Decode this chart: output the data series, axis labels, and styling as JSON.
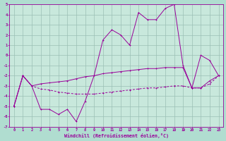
{
  "xlabel": "Windchill (Refroidissement éolien,°C)",
  "bg_color": "#b0ddd0",
  "plot_bg_color": "#c8e8dc",
  "line_color": "#990099",
  "grid_color": "#9bbfb5",
  "hours": [
    0,
    1,
    2,
    3,
    4,
    5,
    6,
    7,
    8,
    9,
    10,
    11,
    12,
    13,
    14,
    15,
    16,
    17,
    18,
    19,
    20,
    21,
    22,
    23
  ],
  "line1": [
    -5.0,
    -2.0,
    -3.0,
    -5.3,
    -5.3,
    -5.8,
    -5.3,
    -6.5,
    -4.5,
    -2.0,
    1.5,
    2.5,
    2.0,
    1.0,
    4.2,
    3.5,
    3.5,
    4.6,
    5.0,
    -1.0,
    -3.2,
    0.0,
    -0.5,
    -2.0
  ],
  "line2": [
    -5.0,
    -2.0,
    -3.0,
    -2.8,
    -2.7,
    -2.6,
    -2.5,
    -2.3,
    -2.1,
    -2.0,
    -1.8,
    -1.7,
    -1.6,
    -1.5,
    -1.4,
    -1.3,
    -1.3,
    -1.2,
    -1.2,
    -1.2,
    -3.2,
    -3.2,
    -2.5,
    -2.0
  ],
  "line3": [
    -5.0,
    -2.0,
    -3.0,
    -3.3,
    -3.4,
    -3.6,
    -3.7,
    -3.8,
    -3.8,
    -3.8,
    -3.7,
    -3.6,
    -3.5,
    -3.4,
    -3.3,
    -3.2,
    -3.2,
    -3.1,
    -3.0,
    -3.0,
    -3.2,
    -3.2,
    -2.8,
    -2.0
  ],
  "ylim": [
    -7,
    5
  ],
  "xlim": [
    -0.5,
    23.5
  ],
  "yticks": [
    -7,
    -6,
    -5,
    -4,
    -3,
    -2,
    -1,
    0,
    1,
    2,
    3,
    4,
    5
  ],
  "xticks": [
    0,
    1,
    2,
    3,
    4,
    5,
    6,
    7,
    8,
    9,
    10,
    11,
    12,
    13,
    14,
    15,
    16,
    17,
    18,
    19,
    20,
    21,
    22,
    23
  ]
}
